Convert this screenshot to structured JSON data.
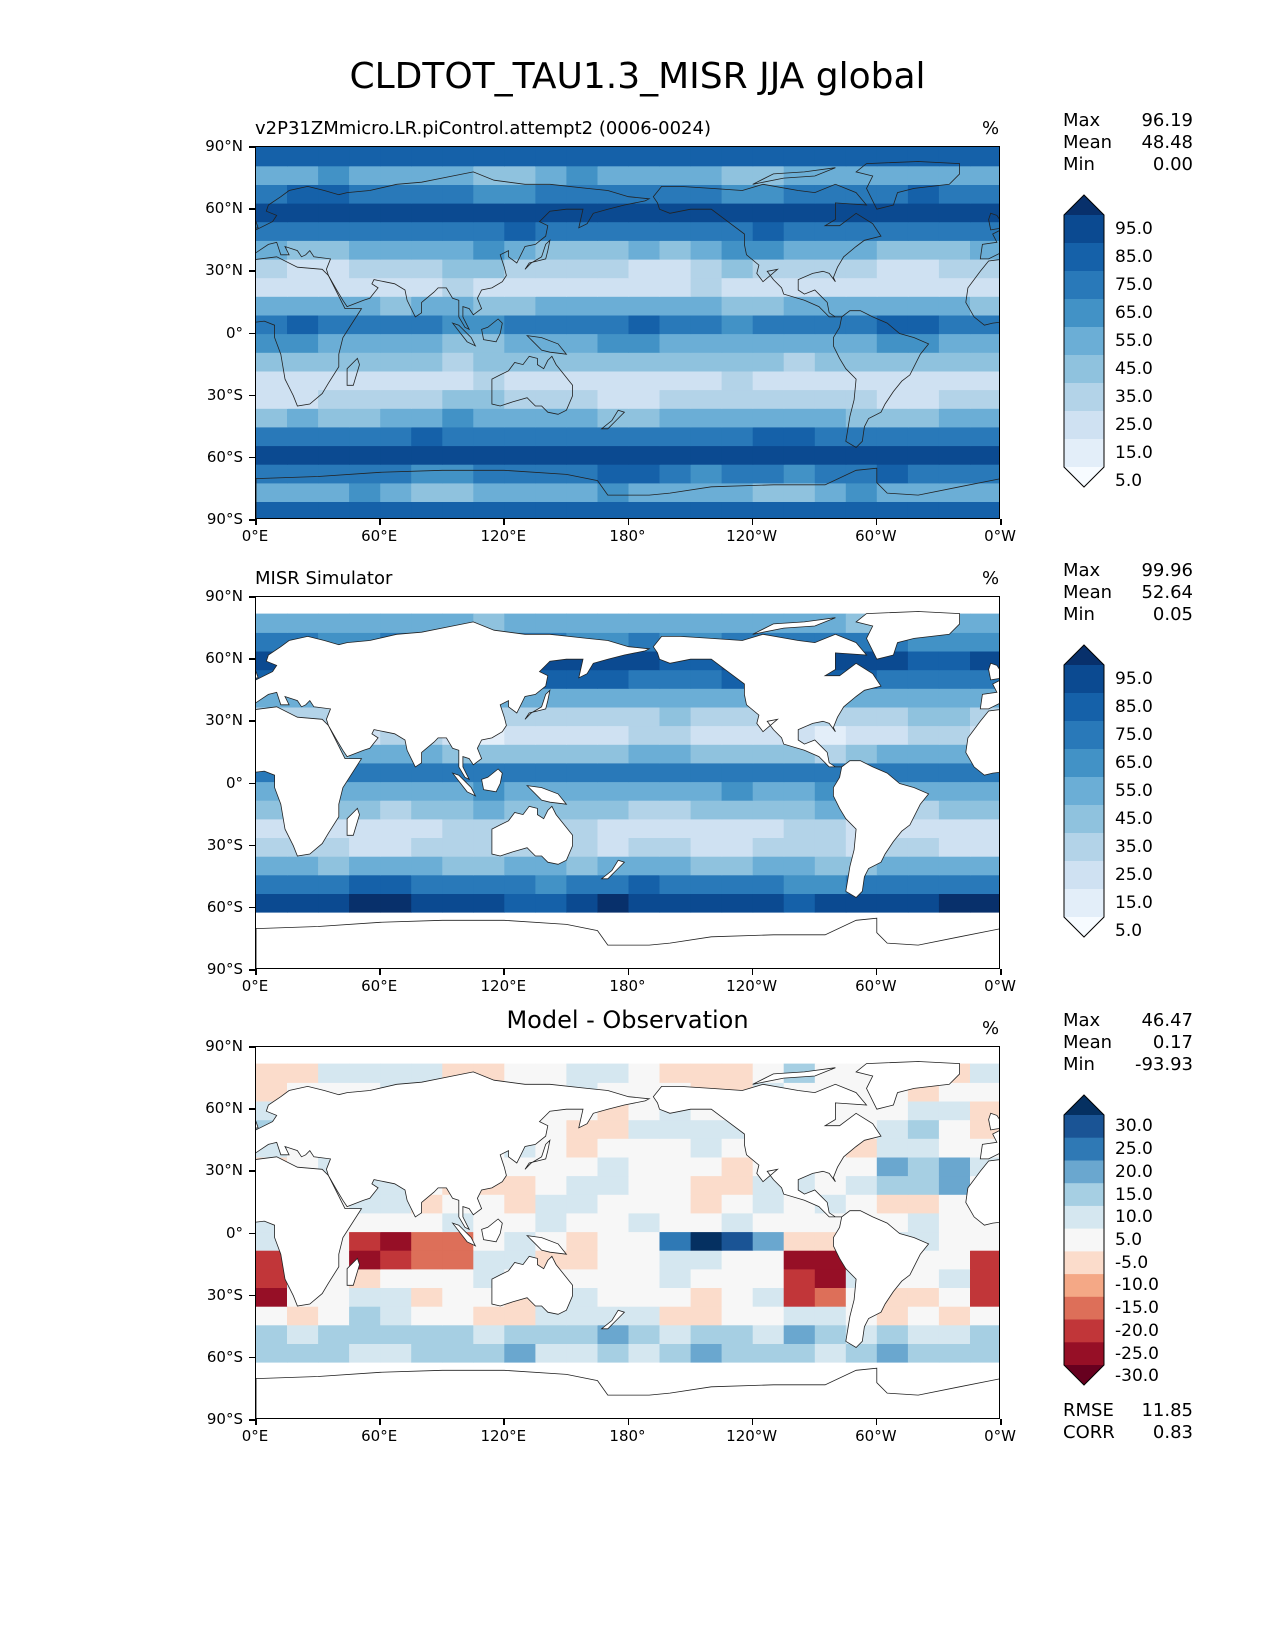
{
  "title": "CLDTOT_TAU1.3_MISR JJA global",
  "panels": [
    {
      "title": "v2P31ZMmicro.LR.piControl.attempt2 (0006-0024)",
      "title_align": "left",
      "units": "%",
      "stats": {
        "max_label": "Max",
        "max": "96.19",
        "mean_label": "Mean",
        "mean": "48.48",
        "min_label": "Min",
        "min": "0.00"
      },
      "colorbar_labels": [
        "95.0",
        "85.0",
        "75.0",
        "65.0",
        "55.0",
        "45.0",
        "35.0",
        "25.0",
        "15.0",
        "5.0"
      ],
      "colorbar_colors": [
        "#08306b",
        "#0b4a91",
        "#1561a9",
        "#2979b9",
        "#4292c6",
        "#6baed6",
        "#8fc2de",
        "#b3d3e8",
        "#cfe1f2",
        "#e3eef9",
        "#f7fbff"
      ]
    },
    {
      "title": "MISR Simulator",
      "title_align": "left",
      "units": "%",
      "stats": {
        "max_label": "Max",
        "max": "99.96",
        "mean_label": "Mean",
        "mean": "52.64",
        "min_label": "Min",
        "min": "0.05"
      },
      "colorbar_labels": [
        "95.0",
        "85.0",
        "75.0",
        "65.0",
        "55.0",
        "45.0",
        "35.0",
        "25.0",
        "15.0",
        "5.0"
      ],
      "colorbar_colors": [
        "#08306b",
        "#0b4a91",
        "#1561a9",
        "#2979b9",
        "#4292c6",
        "#6baed6",
        "#8fc2de",
        "#b3d3e8",
        "#cfe1f2",
        "#e3eef9",
        "#f7fbff"
      ]
    },
    {
      "title": "Model - Observation",
      "title_align": "center",
      "units": "%",
      "stats": {
        "max_label": "Max",
        "max": "46.47",
        "mean_label": "Mean",
        "mean": "0.17",
        "min_label": "Min",
        "min": "-93.93"
      },
      "colorbar_labels": [
        "30.0",
        "25.0",
        "20.0",
        "15.0",
        "10.0",
        "5.0",
        "-5.0",
        "-10.0",
        "-15.0",
        "-20.0",
        "-25.0",
        "-30.0"
      ],
      "colorbar_colors": [
        "#053061",
        "#1a5495",
        "#2f79b5",
        "#6aa7cf",
        "#a6cfe3",
        "#d5e7f0",
        "#f7f7f7",
        "#fbdccb",
        "#f4a886",
        "#dd6f59",
        "#c13639",
        "#960f26",
        "#67001f"
      ],
      "extra": {
        "rmse_label": "RMSE",
        "rmse": "11.85",
        "corr_label": "CORR",
        "corr": "0.83"
      }
    }
  ],
  "axes": {
    "lat_ticks": [
      "90°N",
      "60°N",
      "30°N",
      "0°",
      "30°S",
      "60°S",
      "90°S"
    ],
    "lon_ticks": [
      "0°E",
      "60°E",
      "120°E",
      "180°",
      "120°W",
      "60°W",
      "0°W"
    ]
  },
  "chart_data": [
    {
      "type": "heatmap",
      "title": "v2P31ZMmicro.LR.piControl.attempt2 (0006-0024)",
      "units": "%",
      "x_range": [
        0,
        360
      ],
      "y_range": [
        -90,
        90
      ],
      "zlevels": [
        5,
        15,
        25,
        35,
        45,
        55,
        65,
        75,
        85,
        95
      ],
      "stats": {
        "max": 96.19,
        "mean": 48.48,
        "min": 0.0
      }
    },
    {
      "type": "heatmap",
      "title": "MISR Simulator",
      "units": "%",
      "x_range": [
        0,
        360
      ],
      "y_range": [
        -90,
        90
      ],
      "zlevels": [
        5,
        15,
        25,
        35,
        45,
        55,
        65,
        75,
        85,
        95
      ],
      "stats": {
        "max": 99.96,
        "mean": 52.64,
        "min": 0.05
      }
    },
    {
      "type": "heatmap",
      "title": "Model - Observation",
      "units": "%",
      "x_range": [
        0,
        360
      ],
      "y_range": [
        -90,
        90
      ],
      "zlevels": [
        -30,
        -25,
        -20,
        -15,
        -10,
        -5,
        5,
        10,
        15,
        20,
        25,
        30
      ],
      "stats": {
        "max": 46.47,
        "mean": 0.17,
        "min": -93.93,
        "rmse": 11.85,
        "corr": 0.83
      }
    }
  ]
}
